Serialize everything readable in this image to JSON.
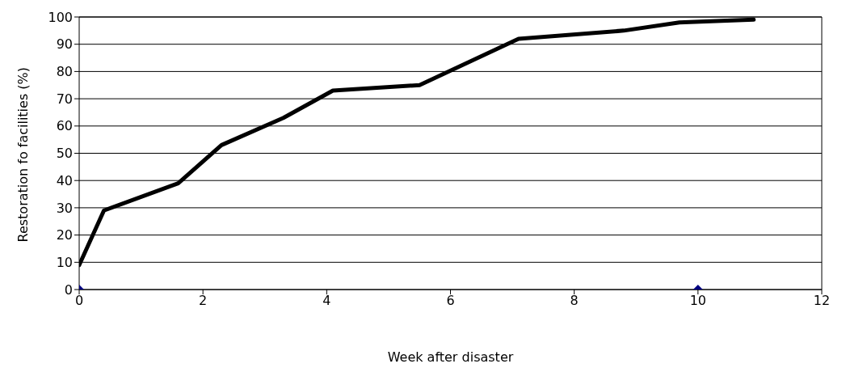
{
  "chart_data": {
    "type": "line",
    "xlabel": "Week after disaster",
    "ylabel": "Restoration fo facilities (%)",
    "xlim": [
      0,
      12
    ],
    "xticks": [
      0,
      2,
      4,
      6,
      8,
      10,
      12
    ],
    "ylim": [
      0,
      100
    ],
    "yticks": [
      0,
      10,
      20,
      30,
      40,
      50,
      60,
      70,
      80,
      90,
      100
    ],
    "grid": "y",
    "legend": false,
    "series": [
      {
        "color": "#000000",
        "marker": "none",
        "line_style": "solid",
        "x": [
          0,
          0.4,
          1.6,
          2.3,
          3.3,
          4.1,
          5.5,
          7.1,
          8.8,
          9.7,
          10.9
        ],
        "values": [
          9,
          29,
          39,
          53,
          63,
          73,
          75,
          92,
          95,
          98,
          99
        ]
      },
      {
        "type": "scatter",
        "color": "#000080",
        "marker": "diamond",
        "x": [
          0,
          10
        ],
        "values": [
          0,
          0
        ]
      }
    ]
  }
}
